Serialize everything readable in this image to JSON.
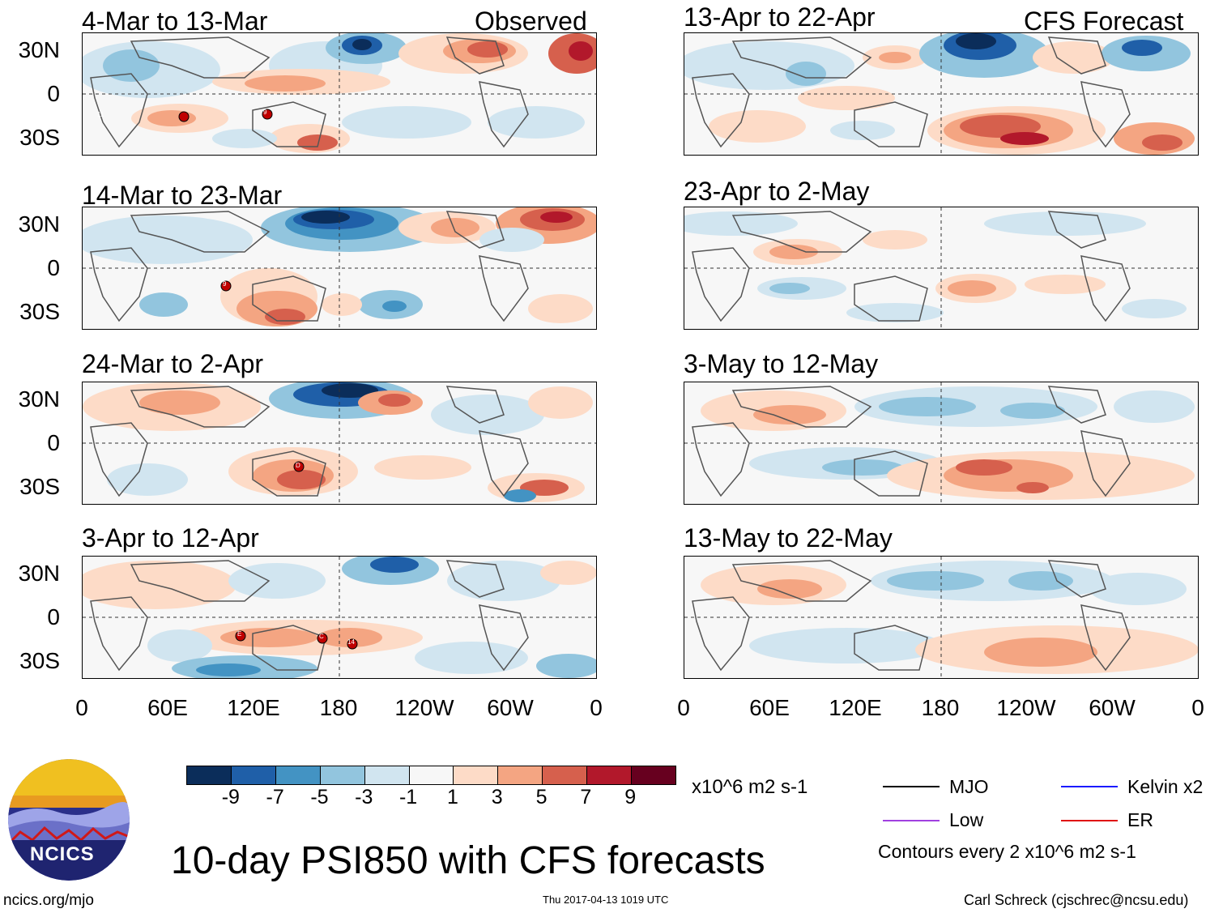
{
  "column_headers": {
    "left": "Observed",
    "right": "CFS Forecast"
  },
  "panels": [
    {
      "title": "4-Mar to 13-Mar",
      "storms": [
        "11",
        "9"
      ]
    },
    {
      "title": "14-Mar to 23-Mar",
      "storms": [
        "9"
      ]
    },
    {
      "title": "24-Mar to 2-Apr",
      "storms": [
        "D"
      ]
    },
    {
      "title": "3-Apr to 12-Apr",
      "storms": [
        "E",
        "C",
        "14"
      ]
    },
    {
      "title": "13-Apr to 22-Apr",
      "storms": []
    },
    {
      "title": "23-Apr to 2-May",
      "storms": []
    },
    {
      "title": "3-May to 12-May",
      "storms": []
    },
    {
      "title": "13-May to 22-May",
      "storms": []
    }
  ],
  "lat_labels": [
    "30N",
    "0",
    "30S"
  ],
  "lon_labels": [
    "0",
    "60E",
    "120E",
    "180",
    "120W",
    "60W",
    "0"
  ],
  "colorbar": {
    "colors": [
      "#0b2d5a",
      "#1f5fa8",
      "#4393c3",
      "#92c5de",
      "#d1e5f0",
      "#f7f7f7",
      "#fddbc7",
      "#f4a582",
      "#d6604d",
      "#b2182b",
      "#67001f"
    ],
    "labels": [
      "-9",
      "-7",
      "-5",
      "-3",
      "-1",
      "1",
      "3",
      "5",
      "7",
      "9"
    ],
    "units": "x10^6 m2 s-1"
  },
  "legend": {
    "items": [
      {
        "label": "MJO",
        "color": "#000000"
      },
      {
        "label": "Kelvin x2",
        "color": "#1a1aff"
      },
      {
        "label": "Low",
        "color": "#a040e0"
      },
      {
        "label": "ER",
        "color": "#e01010"
      }
    ],
    "contours_note": "Contours every 2 x10^6 m2 s-1"
  },
  "logo": {
    "text": "NCICS"
  },
  "main_title": "10-day PSI850 with CFS forecasts",
  "footer": {
    "website": "ncics.org/mjo",
    "timestamp": "Thu 2017-04-13 1019 UTC",
    "author": "Carl Schreck (cjschrec@ncsu.edu)"
  }
}
